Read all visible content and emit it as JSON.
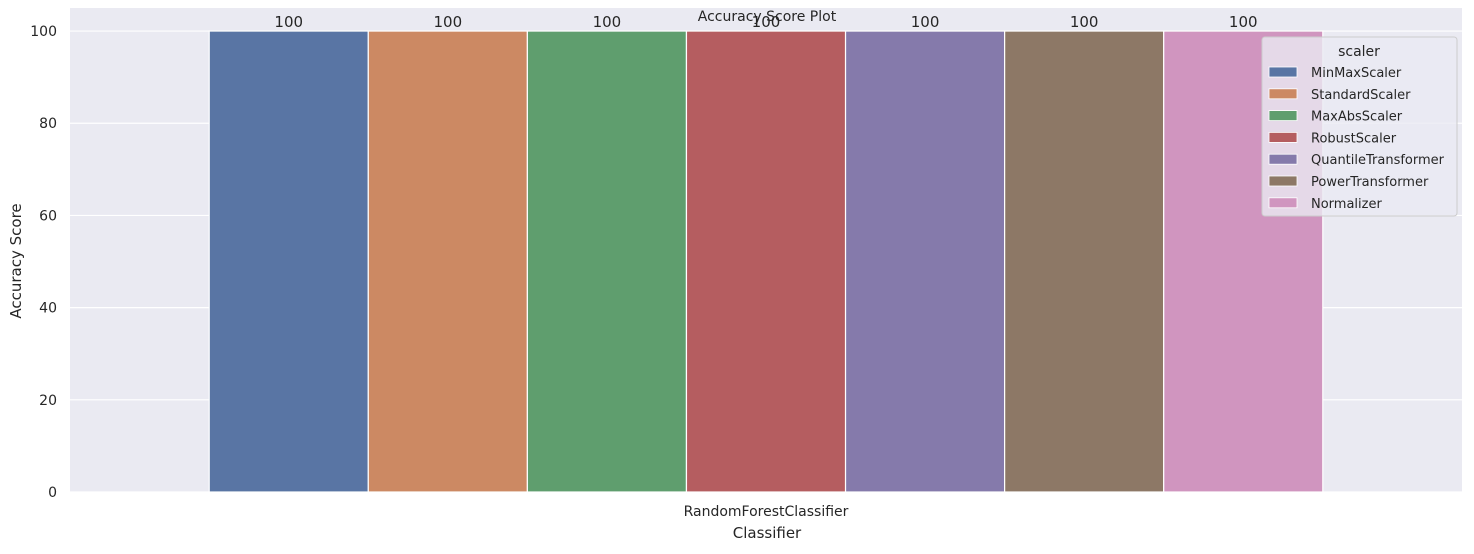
{
  "chart_data": {
    "type": "bar",
    "title": "Accuracy Score Plot",
    "xlabel": "Classifier",
    "ylabel": "Accuracy Score",
    "categories": [
      "RandomForestClassifier"
    ],
    "ylim": [
      0,
      105
    ],
    "yticks": [
      0,
      20,
      40,
      60,
      80,
      100
    ],
    "grid": true,
    "legend_title": "scaler",
    "legend_position": "top-right",
    "background": "#eaeaf2",
    "series": [
      {
        "name": "MinMaxScaler",
        "values": [
          100
        ],
        "label": "100",
        "color": "#5975a4"
      },
      {
        "name": "StandardScaler",
        "values": [
          100
        ],
        "label": "100",
        "color": "#cc8963"
      },
      {
        "name": "MaxAbsScaler",
        "values": [
          100
        ],
        "label": "100",
        "color": "#5f9e6e"
      },
      {
        "name": "RobustScaler",
        "values": [
          100
        ],
        "label": "100",
        "color": "#b55d60"
      },
      {
        "name": "QuantileTransformer",
        "values": [
          100
        ],
        "label": "100",
        "color": "#857aab"
      },
      {
        "name": "PowerTransformer",
        "values": [
          100
        ],
        "label": "100",
        "color": "#8d7866"
      },
      {
        "name": "Normalizer",
        "values": [
          100
        ],
        "label": "100",
        "color": "#d095bf"
      }
    ]
  }
}
